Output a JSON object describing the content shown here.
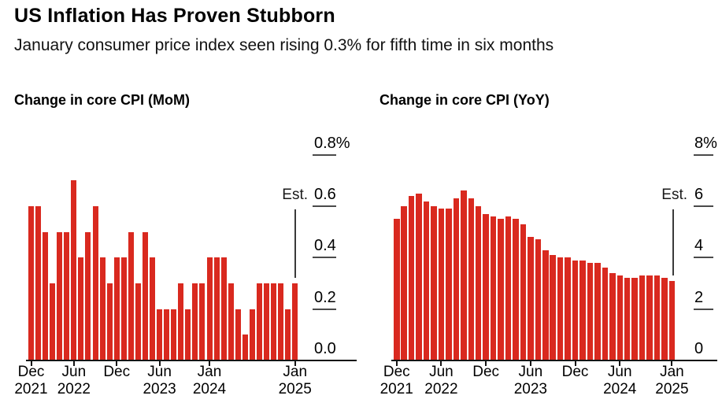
{
  "header": {
    "title": "US Inflation Has Proven Stubborn",
    "subtitle": "January consumer price index seen rising 0.3% for fifth time in six months"
  },
  "colors": {
    "bar": "#d9291f",
    "text": "#000000",
    "axis": "#141414",
    "grid_dash": "#4a4a4a",
    "est_line": "#3a3a3a"
  },
  "chart_data": [
    {
      "type": "bar",
      "title": "Change in core CPI (MoM)",
      "categories": [
        "Dec 2021",
        "Jan 2022",
        "Feb 2022",
        "Mar 2022",
        "Apr 2022",
        "May 2022",
        "Jun 2022",
        "Jul 2022",
        "Aug 2022",
        "Sep 2022",
        "Oct 2022",
        "Nov 2022",
        "Dec 2022",
        "Jan 2023",
        "Feb 2023",
        "Mar 2023",
        "Apr 2023",
        "May 2023",
        "Jun 2023",
        "Jul 2023",
        "Aug 2023",
        "Sep 2023",
        "Oct 2023",
        "Nov 2023",
        "Dec 2023",
        "Jan 2024",
        "Feb 2024",
        "Mar 2024",
        "Apr 2024",
        "May 2024",
        "Jun 2024",
        "Jul 2024",
        "Aug 2024",
        "Sep 2024",
        "Oct 2024",
        "Nov 2024",
        "Dec 2024",
        "Jan 2025"
      ],
      "values": [
        0.6,
        0.6,
        0.5,
        0.3,
        0.5,
        0.5,
        0.7,
        0.4,
        0.5,
        0.6,
        0.4,
        0.3,
        0.4,
        0.4,
        0.5,
        0.3,
        0.5,
        0.4,
        0.2,
        0.2,
        0.2,
        0.3,
        0.2,
        0.3,
        0.3,
        0.4,
        0.4,
        0.4,
        0.3,
        0.2,
        0.1,
        0.2,
        0.3,
        0.3,
        0.3,
        0.3,
        0.2,
        0.3
      ],
      "ylim": [
        0,
        0.8
      ],
      "grid": "right-side tick dashes",
      "legend": "none",
      "yticks": [
        {
          "label": "0.8%",
          "value": 0.8
        },
        {
          "label": "0.6",
          "value": 0.6
        },
        {
          "label": "0.4",
          "value": 0.4
        },
        {
          "label": "0.2",
          "value": 0.2
        },
        {
          "label": "0.0",
          "value": 0.0
        }
      ],
      "xticks": [
        {
          "line1": "Dec",
          "line2": "2021",
          "index": 0
        },
        {
          "line1": "Jun",
          "line2": "2022",
          "index": 6
        },
        {
          "line1": "Dec",
          "line2": "",
          "index": 12
        },
        {
          "line1": "Jun",
          "line2": "2023",
          "index": 18
        },
        {
          "line1": "Jan",
          "line2": "2024",
          "index": 25
        },
        {
          "line1": "Jan",
          "line2": "2025",
          "index": 37
        }
      ],
      "est_label": "Est.",
      "est_index": 37,
      "est_value": 0.3
    },
    {
      "type": "bar",
      "title": "Change in core CPI (YoY)",
      "categories": [
        "Dec 2021",
        "Jan 2022",
        "Feb 2022",
        "Mar 2022",
        "Apr 2022",
        "May 2022",
        "Jun 2022",
        "Jul 2022",
        "Aug 2022",
        "Sep 2022",
        "Oct 2022",
        "Nov 2022",
        "Dec 2022",
        "Jan 2023",
        "Feb 2023",
        "Mar 2023",
        "Apr 2023",
        "May 2023",
        "Jun 2023",
        "Jul 2023",
        "Aug 2023",
        "Sep 2023",
        "Oct 2023",
        "Nov 2023",
        "Dec 2023",
        "Jan 2024",
        "Feb 2024",
        "Mar 2024",
        "Apr 2024",
        "May 2024",
        "Jun 2024",
        "Jul 2024",
        "Aug 2024",
        "Sep 2024",
        "Oct 2024",
        "Nov 2024",
        "Dec 2024",
        "Jan 2025"
      ],
      "values": [
        5.5,
        6.0,
        6.4,
        6.5,
        6.2,
        6.0,
        5.9,
        5.9,
        6.3,
        6.6,
        6.3,
        6.0,
        5.7,
        5.6,
        5.5,
        5.6,
        5.5,
        5.3,
        4.8,
        4.7,
        4.3,
        4.1,
        4.0,
        4.0,
        3.9,
        3.9,
        3.8,
        3.8,
        3.6,
        3.4,
        3.3,
        3.2,
        3.2,
        3.3,
        3.3,
        3.3,
        3.2,
        3.1
      ],
      "ylim": [
        0,
        8
      ],
      "grid": "right-side tick dashes",
      "legend": "none",
      "yticks": [
        {
          "label": "8%",
          "value": 8
        },
        {
          "label": "6",
          "value": 6
        },
        {
          "label": "4",
          "value": 4
        },
        {
          "label": "2",
          "value": 2
        },
        {
          "label": "0",
          "value": 0
        }
      ],
      "xticks": [
        {
          "line1": "Dec",
          "line2": "2021",
          "index": 0
        },
        {
          "line1": "Jun",
          "line2": "2022",
          "index": 6
        },
        {
          "line1": "Dec",
          "line2": "",
          "index": 12
        },
        {
          "line1": "Jun",
          "line2": "2023",
          "index": 18
        },
        {
          "line1": "Dec",
          "line2": "",
          "index": 24
        },
        {
          "line1": "Jun",
          "line2": "2024",
          "index": 30
        },
        {
          "line1": "Jan",
          "line2": "2025",
          "index": 37
        }
      ],
      "est_label": "Est.",
      "est_index": 37,
      "est_value": 3.1
    }
  ]
}
